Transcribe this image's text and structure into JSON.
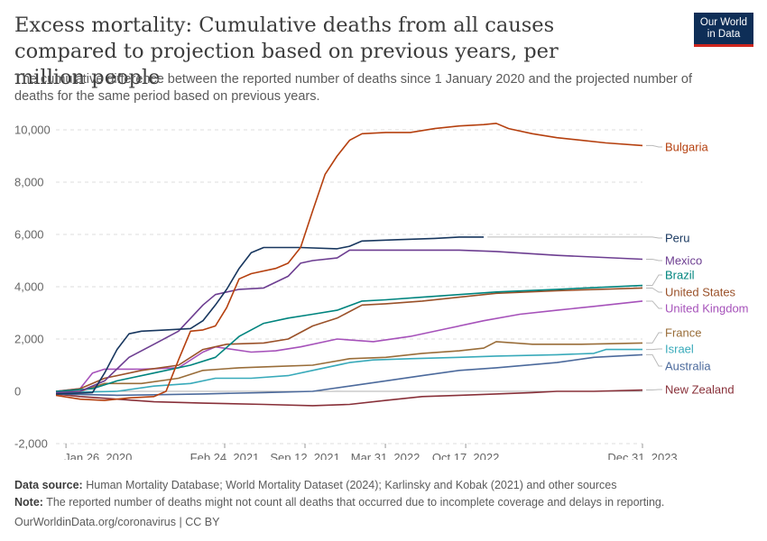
{
  "header": {
    "title": "Excess mortality: Cumulative deaths from all causes compared to projection based on previous years, per million people",
    "subtitle": "The cumulative difference between the reported number of deaths since 1 January 2020 and the projected number of deaths for the same period based on previous years."
  },
  "logo": {
    "line1": "Our World",
    "line2": "in Data",
    "bg_color": "#0e2e57",
    "accent_color": "#ce261e"
  },
  "footer": {
    "source_label": "Data source:",
    "source_text": "Human Mortality Database; World Mortality Dataset (2024); Karlinsky and Kobak (2021) and other sources",
    "note_label": "Note:",
    "note_text": "The reported number of deaths might not count all deaths that occurred due to incomplete coverage and delays in reporting.",
    "credit": "OurWorldinData.org/coronavirus | CC BY"
  },
  "chart_data": {
    "type": "line",
    "title": "",
    "xlabel": "",
    "ylabel": "",
    "x_range": [
      "2020-01-01",
      "2023-12-31"
    ],
    "ylim": [
      -2000,
      10000
    ],
    "y_ticks": [
      -2000,
      0,
      2000,
      4000,
      6000,
      8000,
      10000
    ],
    "y_tick_labels": [
      "-2,000",
      "0",
      "2,000",
      "4,000",
      "6,000",
      "8,000",
      "10,000"
    ],
    "x_ticks": [
      "2020-01-26",
      "2021-02-24",
      "2021-09-12",
      "2022-03-31",
      "2022-10-17",
      "2023-12-31"
    ],
    "x_tick_labels": [
      "Jan 26, 2020",
      "Feb 24, 2021",
      "Sep 12, 2021",
      "Mar 31, 2022",
      "Oct 17, 2022",
      "Dec 31, 2023"
    ],
    "grid": "horizontal dashed",
    "legend": "right, labels at line ends",
    "series": [
      {
        "name": "Bulgaria",
        "color": "#b5400f",
        "points": [
          [
            "2020-01-01",
            -150
          ],
          [
            "2020-03-01",
            -300
          ],
          [
            "2020-05-01",
            -350
          ],
          [
            "2020-07-01",
            -250
          ],
          [
            "2020-09-01",
            -200
          ],
          [
            "2020-10-01",
            0
          ],
          [
            "2020-11-01",
            1200
          ],
          [
            "2020-12-01",
            2300
          ],
          [
            "2021-01-01",
            2350
          ],
          [
            "2021-02-01",
            2500
          ],
          [
            "2021-03-01",
            3200
          ],
          [
            "2021-04-01",
            4300
          ],
          [
            "2021-05-01",
            4500
          ],
          [
            "2021-07-01",
            4700
          ],
          [
            "2021-08-01",
            4900
          ],
          [
            "2021-09-01",
            5500
          ],
          [
            "2021-10-01",
            6900
          ],
          [
            "2021-11-01",
            8300
          ],
          [
            "2021-12-01",
            9000
          ],
          [
            "2022-01-01",
            9600
          ],
          [
            "2022-02-01",
            9850
          ],
          [
            "2022-04-01",
            9900
          ],
          [
            "2022-06-01",
            9900
          ],
          [
            "2022-08-01",
            10050
          ],
          [
            "2022-10-01",
            10150
          ],
          [
            "2022-12-01",
            10200
          ],
          [
            "2023-01-01",
            10250
          ],
          [
            "2023-02-01",
            10050
          ],
          [
            "2023-04-01",
            9850
          ],
          [
            "2023-06-01",
            9700
          ],
          [
            "2023-08-01",
            9600
          ],
          [
            "2023-10-01",
            9500
          ],
          [
            "2023-12-31",
            9400
          ]
        ]
      },
      {
        "name": "Peru",
        "color": "#18375f",
        "points": [
          [
            "2020-01-01",
            -100
          ],
          [
            "2020-04-01",
            -50
          ],
          [
            "2020-05-01",
            700
          ],
          [
            "2020-06-01",
            1600
          ],
          [
            "2020-07-01",
            2200
          ],
          [
            "2020-08-01",
            2300
          ],
          [
            "2020-10-01",
            2350
          ],
          [
            "2020-12-01",
            2400
          ],
          [
            "2021-01-01",
            2700
          ],
          [
            "2021-02-01",
            3300
          ],
          [
            "2021-03-01",
            3900
          ],
          [
            "2021-04-01",
            4700
          ],
          [
            "2021-05-01",
            5300
          ],
          [
            "2021-06-01",
            5500
          ],
          [
            "2021-09-01",
            5500
          ],
          [
            "2021-12-01",
            5450
          ],
          [
            "2022-01-01",
            5550
          ],
          [
            "2022-02-01",
            5750
          ],
          [
            "2022-05-01",
            5800
          ],
          [
            "2022-08-01",
            5850
          ],
          [
            "2022-10-01",
            5900
          ],
          [
            "2022-12-01",
            5900
          ]
        ]
      },
      {
        "name": "Mexico",
        "color": "#6d3e91",
        "points": [
          [
            "2020-01-01",
            -50
          ],
          [
            "2020-03-01",
            0
          ],
          [
            "2020-05-01",
            400
          ],
          [
            "2020-07-01",
            1300
          ],
          [
            "2020-09-01",
            1800
          ],
          [
            "2020-11-01",
            2300
          ],
          [
            "2021-01-01",
            3300
          ],
          [
            "2021-02-01",
            3700
          ],
          [
            "2021-04-01",
            3900
          ],
          [
            "2021-06-01",
            3950
          ],
          [
            "2021-08-01",
            4400
          ],
          [
            "2021-09-01",
            4900
          ],
          [
            "2021-10-01",
            5000
          ],
          [
            "2021-12-01",
            5100
          ],
          [
            "2022-01-01",
            5400
          ],
          [
            "2022-04-01",
            5400
          ],
          [
            "2022-10-01",
            5400
          ],
          [
            "2023-01-01",
            5350
          ],
          [
            "2023-06-01",
            5200
          ],
          [
            "2023-12-31",
            5050
          ]
        ]
      },
      {
        "name": "Brazil",
        "color": "#00847e",
        "points": [
          [
            "2020-01-01",
            0
          ],
          [
            "2020-04-01",
            100
          ],
          [
            "2020-06-01",
            400
          ],
          [
            "2020-09-01",
            700
          ],
          [
            "2020-12-01",
            1000
          ],
          [
            "2021-02-01",
            1300
          ],
          [
            "2021-04-01",
            2100
          ],
          [
            "2021-06-01",
            2600
          ],
          [
            "2021-08-01",
            2800
          ],
          [
            "2021-10-01",
            2950
          ],
          [
            "2021-12-01",
            3100
          ],
          [
            "2022-02-01",
            3450
          ],
          [
            "2022-04-01",
            3500
          ],
          [
            "2022-07-01",
            3600
          ],
          [
            "2022-10-01",
            3700
          ],
          [
            "2023-01-01",
            3800
          ],
          [
            "2023-06-01",
            3900
          ],
          [
            "2023-12-31",
            4050
          ]
        ]
      },
      {
        "name": "United States",
        "color": "#9a5129",
        "points": [
          [
            "2020-01-01",
            0
          ],
          [
            "2020-03-01",
            100
          ],
          [
            "2020-05-01",
            500
          ],
          [
            "2020-08-01",
            800
          ],
          [
            "2020-11-01",
            1000
          ],
          [
            "2021-01-01",
            1600
          ],
          [
            "2021-03-01",
            1800
          ],
          [
            "2021-06-01",
            1850
          ],
          [
            "2021-08-01",
            2000
          ],
          [
            "2021-10-01",
            2500
          ],
          [
            "2021-12-01",
            2800
          ],
          [
            "2022-02-01",
            3300
          ],
          [
            "2022-04-01",
            3350
          ],
          [
            "2022-07-01",
            3450
          ],
          [
            "2022-10-01",
            3600
          ],
          [
            "2023-01-01",
            3750
          ],
          [
            "2023-06-01",
            3850
          ],
          [
            "2023-12-31",
            3950
          ]
        ]
      },
      {
        "name": "United Kingdom",
        "color": "#a652ba",
        "points": [
          [
            "2020-01-01",
            0
          ],
          [
            "2020-03-01",
            100
          ],
          [
            "2020-04-01",
            700
          ],
          [
            "2020-05-01",
            850
          ],
          [
            "2020-08-01",
            850
          ],
          [
            "2020-11-01",
            900
          ],
          [
            "2021-01-01",
            1500
          ],
          [
            "2021-02-01",
            1700
          ],
          [
            "2021-05-01",
            1500
          ],
          [
            "2021-07-01",
            1550
          ],
          [
            "2021-09-01",
            1700
          ],
          [
            "2021-12-01",
            2000
          ],
          [
            "2022-03-01",
            1900
          ],
          [
            "2022-06-01",
            2100
          ],
          [
            "2022-09-01",
            2400
          ],
          [
            "2022-12-01",
            2700
          ],
          [
            "2023-03-01",
            2950
          ],
          [
            "2023-06-01",
            3100
          ],
          [
            "2023-09-01",
            3250
          ],
          [
            "2023-12-31",
            3450
          ]
        ]
      },
      {
        "name": "France",
        "color": "#996d39",
        "points": [
          [
            "2020-01-01",
            0
          ],
          [
            "2020-03-01",
            0
          ],
          [
            "2020-05-01",
            300
          ],
          [
            "2020-08-01",
            300
          ],
          [
            "2020-11-01",
            500
          ],
          [
            "2021-01-01",
            800
          ],
          [
            "2021-04-01",
            900
          ],
          [
            "2021-07-01",
            950
          ],
          [
            "2021-10-01",
            1000
          ],
          [
            "2022-01-01",
            1250
          ],
          [
            "2022-04-01",
            1300
          ],
          [
            "2022-07-01",
            1450
          ],
          [
            "2022-10-01",
            1550
          ],
          [
            "2022-12-01",
            1650
          ],
          [
            "2023-01-01",
            1900
          ],
          [
            "2023-04-01",
            1800
          ],
          [
            "2023-08-01",
            1800
          ],
          [
            "2023-12-31",
            1850
          ]
        ]
      },
      {
        "name": "Israel",
        "color": "#38aaba",
        "points": [
          [
            "2020-01-01",
            -50
          ],
          [
            "2020-06-01",
            0
          ],
          [
            "2020-09-01",
            200
          ],
          [
            "2020-12-01",
            300
          ],
          [
            "2021-02-01",
            500
          ],
          [
            "2021-05-01",
            500
          ],
          [
            "2021-08-01",
            600
          ],
          [
            "2021-10-01",
            800
          ],
          [
            "2022-01-01",
            1100
          ],
          [
            "2022-03-01",
            1200
          ],
          [
            "2022-06-01",
            1250
          ],
          [
            "2022-10-01",
            1300
          ],
          [
            "2023-01-01",
            1350
          ],
          [
            "2023-06-01",
            1400
          ],
          [
            "2023-09-01",
            1450
          ],
          [
            "2023-10-01",
            1600
          ],
          [
            "2023-12-31",
            1600
          ]
        ]
      },
      {
        "name": "Australia",
        "color": "#4c6a9c",
        "points": [
          [
            "2020-01-01",
            -100
          ],
          [
            "2020-06-01",
            -150
          ],
          [
            "2021-01-01",
            -100
          ],
          [
            "2021-06-01",
            -50
          ],
          [
            "2021-10-01",
            0
          ],
          [
            "2022-01-01",
            200
          ],
          [
            "2022-04-01",
            400
          ],
          [
            "2022-07-01",
            600
          ],
          [
            "2022-10-01",
            800
          ],
          [
            "2023-01-01",
            900
          ],
          [
            "2023-06-01",
            1100
          ],
          [
            "2023-09-01",
            1300
          ],
          [
            "2023-12-31",
            1400
          ]
        ]
      },
      {
        "name": "New Zealand",
        "color": "#883039",
        "points": [
          [
            "2020-01-01",
            -100
          ],
          [
            "2020-03-01",
            -200
          ],
          [
            "2020-06-01",
            -300
          ],
          [
            "2020-09-01",
            -400
          ],
          [
            "2021-01-01",
            -450
          ],
          [
            "2021-06-01",
            -500
          ],
          [
            "2021-10-01",
            -550
          ],
          [
            "2022-01-01",
            -500
          ],
          [
            "2022-04-01",
            -350
          ],
          [
            "2022-07-01",
            -200
          ],
          [
            "2022-10-01",
            -150
          ],
          [
            "2023-01-01",
            -100
          ],
          [
            "2023-04-01",
            -50
          ],
          [
            "2023-06-01",
            0
          ],
          [
            "2023-09-01",
            0
          ],
          [
            "2023-12-31",
            50
          ]
        ]
      }
    ]
  }
}
